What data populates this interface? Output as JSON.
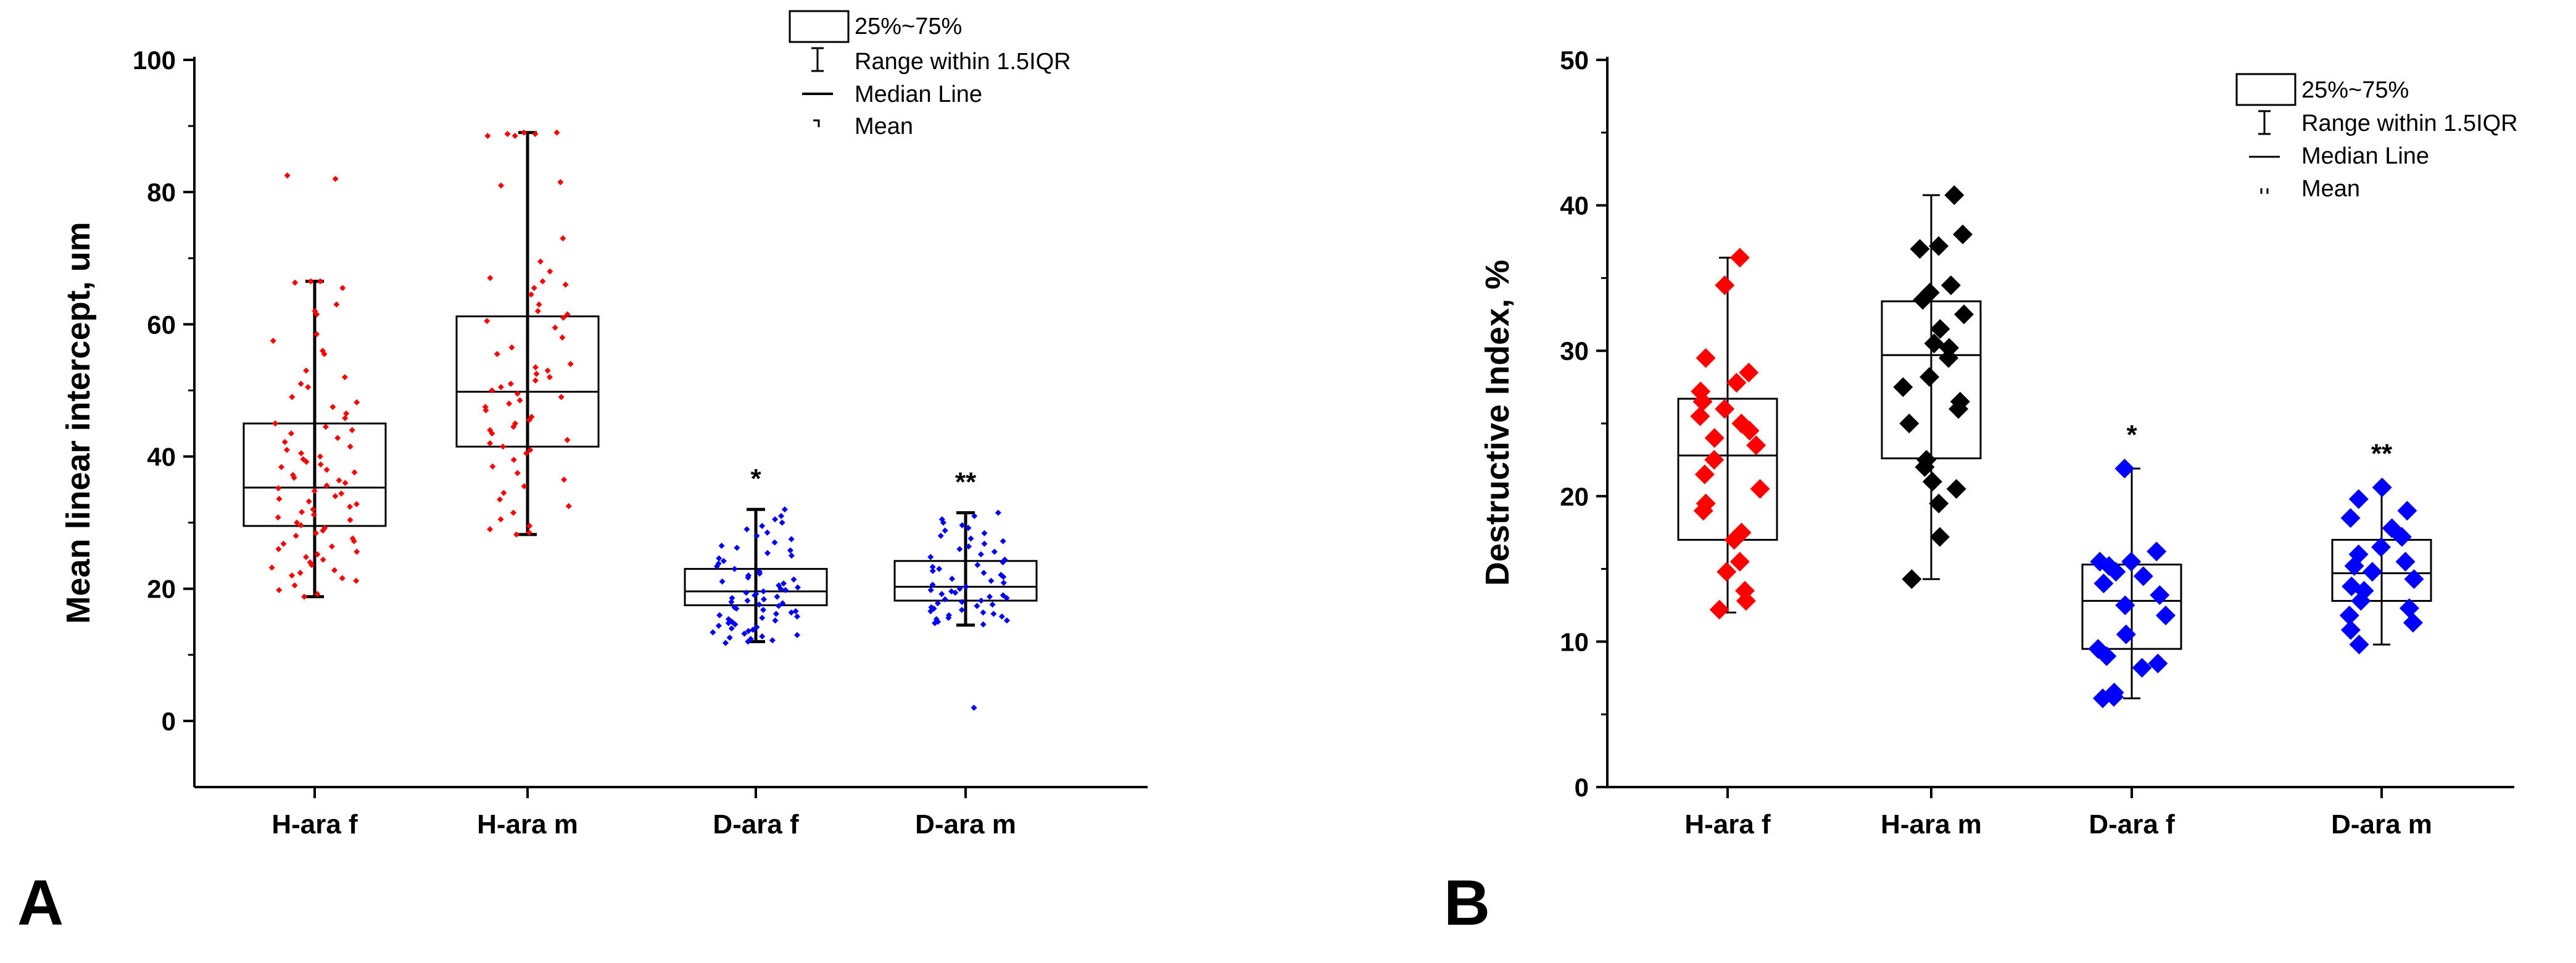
{
  "legend": {
    "box": "25%~75%",
    "whisker": "Range within 1.5IQR",
    "median": "Median Line",
    "mean": "Mean"
  },
  "chart_data": [
    {
      "panel": "A",
      "type": "box",
      "title": "",
      "xlabel": "",
      "ylabel": "Mean linear intercept, um",
      "ylim": [
        -10,
        100
      ],
      "yticks": [
        0,
        20,
        40,
        60,
        80,
        100
      ],
      "categories": [
        "H-ara f",
        "H-ara m",
        "D-ara f",
        "D-ara m"
      ],
      "colors": [
        "#ff0000",
        "#ff0000",
        "#0000ff",
        "#0000ff"
      ],
      "marker": "small-diamond",
      "legend_position": "top-center",
      "grid": false,
      "significance": [
        "",
        "",
        "*",
        "**"
      ],
      "boxes": [
        {
          "q1": 29.5,
          "median": 35.3,
          "q3": 45,
          "whisker_low": 18.8,
          "whisker_high": 66.5,
          "mean": 38
        },
        {
          "q1": 41.5,
          "median": 49.8,
          "q3": 61.2,
          "whisker_low": 28.2,
          "whisker_high": 89,
          "mean": 52
        },
        {
          "q1": 17.5,
          "median": 19.6,
          "q3": 23,
          "whisker_low": 12,
          "whisker_high": 32,
          "mean": 20.5
        },
        {
          "q1": 18.2,
          "median": 20.3,
          "q3": 24.2,
          "whisker_low": 14.5,
          "whisker_high": 31.5,
          "mean": 21.5
        }
      ],
      "points": [
        [
          82.5,
          82,
          66.5,
          66.5,
          66.3,
          65.5,
          63,
          62,
          61.5,
          58.5,
          57.5,
          56,
          55.5,
          53,
          52,
          51,
          50.5,
          49,
          48.2,
          47.5,
          46.5,
          45.8,
          45,
          44.5,
          44,
          43.5,
          42.8,
          42.2,
          41.5,
          41,
          40.5,
          40,
          39.6,
          39.2,
          38.8,
          38.4,
          38,
          37.6,
          37.2,
          36.8,
          36.4,
          36,
          35.6,
          35.2,
          34.8,
          34.4,
          34,
          33.6,
          33.2,
          32.8,
          32.4,
          32,
          31.6,
          31.2,
          30.8,
          30.4,
          30,
          29.6,
          29.2,
          28.8,
          28.4,
          28,
          27.6,
          27.2,
          26.8,
          26.4,
          26,
          25.6,
          25.2,
          24.8,
          24.4,
          24,
          23.6,
          23.2,
          22.8,
          22.4,
          22,
          21.6,
          21.2,
          20.5,
          19.8,
          19.2,
          18.8
        ],
        [
          89,
          89,
          88.8,
          88.8,
          88.5,
          88.5,
          81.5,
          81,
          73,
          69.5,
          68,
          67,
          66.5,
          66,
          65.5,
          64.5,
          63,
          62,
          61.5,
          61,
          60.5,
          59.5,
          58,
          56.5,
          55.5,
          54,
          53.5,
          53,
          52.5,
          52,
          51.5,
          51,
          50.5,
          50,
          49.5,
          49,
          48.5,
          48,
          47.5,
          47,
          46,
          45.5,
          45,
          44.5,
          44,
          43.5,
          42.5,
          42,
          41.5,
          41,
          40.5,
          39.5,
          38.5,
          37.5,
          36.5,
          35.5,
          34.5,
          33.5,
          32.5,
          31.5,
          30.5,
          29.5,
          29,
          28.5,
          28.2
        ],
        [
          32,
          31,
          30.5,
          30,
          29.5,
          29,
          28.5,
          28,
          27.5,
          27,
          26.5,
          26.2,
          25.8,
          25.4,
          25,
          24.6,
          24.2,
          23.8,
          23.4,
          23,
          22.6,
          22.3,
          22,
          21.7,
          21.4,
          21.1,
          20.8,
          20.5,
          20.2,
          20,
          19.8,
          19.6,
          19.4,
          19.2,
          19,
          18.8,
          18.6,
          18.4,
          18.2,
          18,
          17.8,
          17.6,
          17.4,
          17.2,
          17,
          16.8,
          16.6,
          16.4,
          16.2,
          16,
          15.8,
          15.6,
          15.4,
          15.2,
          15,
          14.8,
          14.6,
          14.4,
          14.2,
          14,
          13.8,
          13.6,
          13.4,
          13.2,
          13,
          12.8,
          12.6,
          12.4,
          12.2,
          12,
          11.8
        ],
        [
          31.5,
          31,
          30.5,
          30,
          29.6,
          29.2,
          28.8,
          28.4,
          28,
          27.6,
          27.2,
          26.8,
          26.4,
          26,
          25.6,
          25.2,
          24.8,
          24.4,
          24,
          23.6,
          23.3,
          23,
          22.7,
          22.4,
          22.1,
          21.8,
          21.5,
          21.2,
          20.9,
          20.6,
          20.3,
          20,
          19.8,
          19.6,
          19.4,
          19.2,
          19,
          18.8,
          18.6,
          18.4,
          18.2,
          18,
          17.8,
          17.6,
          17.4,
          17.2,
          17,
          16.8,
          16.6,
          16.4,
          16.2,
          16,
          15.8,
          15.6,
          15.4,
          15.2,
          15,
          14.8,
          14.6,
          2
        ]
      ]
    },
    {
      "panel": "B",
      "type": "box",
      "title": "",
      "xlabel": "",
      "ylabel": "Destructive Index, %",
      "ylim": [
        0,
        50
      ],
      "yticks": [
        0,
        10,
        20,
        30,
        40,
        50
      ],
      "categories": [
        "H-ara f",
        "H-ara m",
        "D-ara f",
        "D-ara m"
      ],
      "colors": [
        "#ff0000",
        "#000000",
        "#0000ff",
        "#0000ff"
      ],
      "marker": "large-diamond",
      "legend_position": "top-right",
      "grid": false,
      "significance": [
        "",
        "",
        "*",
        "**"
      ],
      "boxes": [
        {
          "q1": 17,
          "median": 22.8,
          "q3": 26.7,
          "whisker_low": 12,
          "whisker_high": 36.4,
          "mean": 22.5
        },
        {
          "q1": 22.6,
          "median": 29.7,
          "q3": 33.4,
          "whisker_low": 14.3,
          "whisker_high": 40.7,
          "mean": 28.5
        },
        {
          "q1": 9.5,
          "median": 12.8,
          "q3": 15.3,
          "whisker_low": 6.1,
          "whisker_high": 21.9,
          "mean": 12.5
        },
        {
          "q1": 12.8,
          "median": 14.7,
          "q3": 17,
          "whisker_low": 9.8,
          "whisker_high": 20.6,
          "mean": 15
        }
      ],
      "points": [
        [
          36.4,
          34.5,
          29.5,
          28.5,
          27.8,
          27.2,
          26.5,
          26,
          25.5,
          25,
          24.5,
          24,
          23.5,
          22.5,
          21.5,
          20.5,
          19.5,
          19,
          17.5,
          17,
          15.5,
          14.8,
          13.5,
          12.8,
          12.2
        ],
        [
          40.7,
          38,
          37.2,
          37,
          34.5,
          34,
          33.5,
          32.5,
          31.5,
          30.5,
          30.2,
          29.5,
          28.2,
          27.5,
          26.5,
          26,
          25,
          22.5,
          22,
          21,
          20.5,
          19.5,
          17.2,
          14.3
        ],
        [
          21.9,
          16.2,
          15.5,
          15.5,
          15.2,
          14.8,
          14.5,
          14,
          13.2,
          12.5,
          11.8,
          10.5,
          9.5,
          9,
          8.5,
          8.2,
          6.5,
          6.2,
          6.1
        ],
        [
          20.6,
          19.8,
          19,
          18.5,
          17.8,
          17.2,
          16.5,
          16,
          15.5,
          15.2,
          14.8,
          14.3,
          13.8,
          13.5,
          12.8,
          12.3,
          11.8,
          11.3,
          10.8,
          9.8
        ]
      ]
    }
  ]
}
